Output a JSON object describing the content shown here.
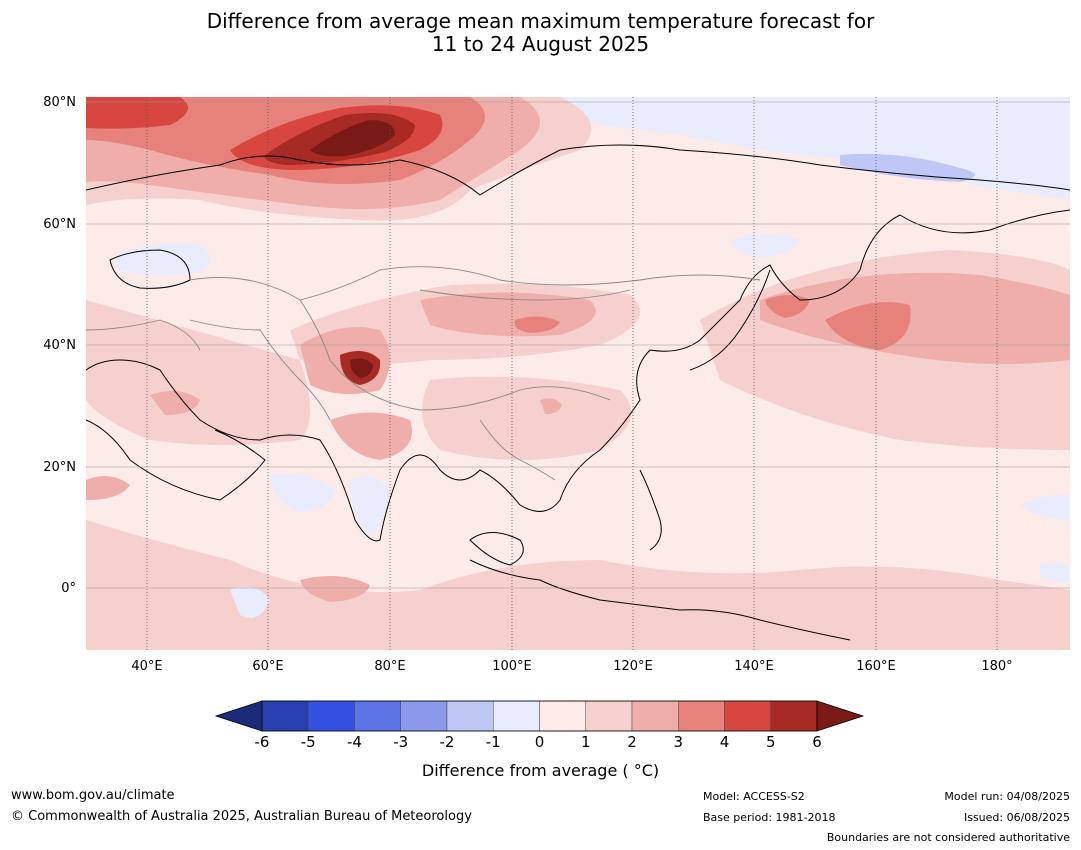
{
  "title_line1": "Difference from average mean maximum temperature forecast for",
  "title_line2": "11 to 24 August 2025",
  "lat_labels": [
    "80°N",
    "60°N",
    "40°N",
    "20°N",
    "0°"
  ],
  "lon_labels": [
    "40°E",
    "60°E",
    "80°E",
    "100°E",
    "120°E",
    "140°E",
    "160°E",
    "180°"
  ],
  "colorbar": {
    "ticks": [
      "-6",
      "-5",
      "-4",
      "-3",
      "-2",
      "-1",
      "0",
      "1",
      "2",
      "3",
      "4",
      "5",
      "6"
    ],
    "colors": [
      "#1c2a7a",
      "#2a3faf",
      "#3350e0",
      "#5d73e6",
      "#8a99ec",
      "#bfc7f5",
      "#e8ecfc",
      "#fdebea",
      "#f6d0cd",
      "#efaea9",
      "#e6827b",
      "#d7463f",
      "#a82a24",
      "#7a1a16"
    ],
    "title": "Difference from average ( °C)"
  },
  "footer": {
    "website": "www.bom.gov.au/climate",
    "copyright": "© Commonwealth of Australia 2025, Australian Bureau of Meteorology",
    "model": "Model: ACCESS-S2",
    "base_period": "Base period: 1981-2018",
    "model_run": "Model run: 04/08/2025",
    "issued": "Issued: 06/08/2025",
    "boundaries": "Boundaries are not considered authoritative"
  }
}
